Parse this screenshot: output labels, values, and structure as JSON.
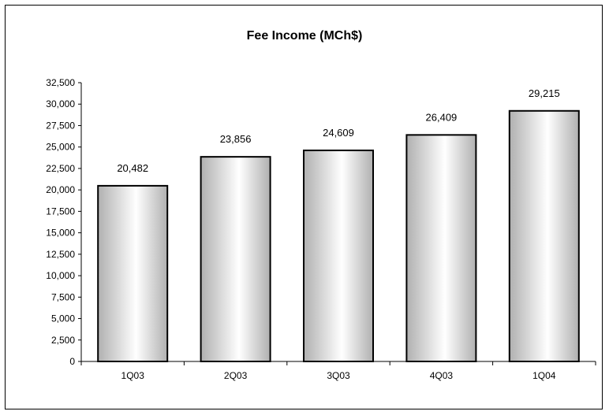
{
  "chart_data": {
    "type": "bar",
    "title": "Fee Income (MCh$)",
    "xlabel": "",
    "ylabel": "",
    "categories": [
      "1Q03",
      "2Q03",
      "3Q03",
      "4Q03",
      "1Q04"
    ],
    "values": [
      20482,
      23856,
      24609,
      26409,
      29215
    ],
    "value_labels": [
      "20,482",
      "23,856",
      "24,609",
      "26,409",
      "29,215"
    ],
    "ylim": [
      0,
      32500
    ],
    "yticks": [
      0,
      2500,
      5000,
      7500,
      10000,
      12500,
      15000,
      17500,
      20000,
      22500,
      25000,
      27500,
      30000,
      32500
    ],
    "ytick_labels": [
      "0",
      "2,500",
      "5,000",
      "7,500",
      "10,000",
      "12,500",
      "15,000",
      "17,500",
      "20,000",
      "22,500",
      "25,000",
      "27,500",
      "30,000",
      "32,500"
    ],
    "grid": false,
    "legend": "none",
    "colors": {
      "bar_fill_light": "#ffffff",
      "bar_fill_dark": "#b0b0b0",
      "bar_stroke": "#000000"
    }
  }
}
